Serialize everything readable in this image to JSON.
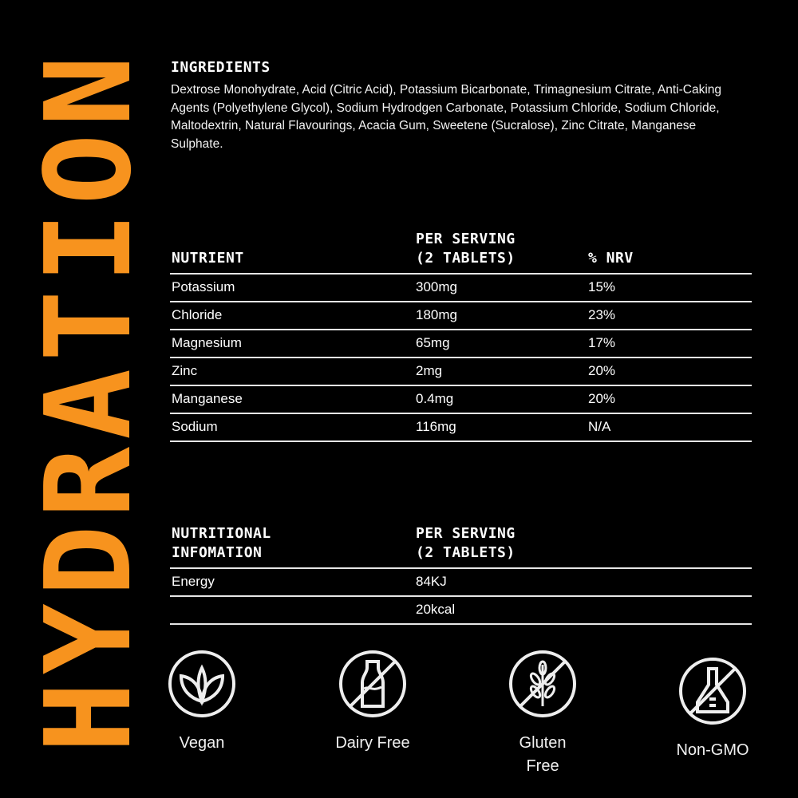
{
  "brand": "HYDRATION",
  "accent_color": "#f7931e",
  "ingredients": {
    "title": "INGREDIENTS",
    "text": "Dextrose Monohydrate, Acid (Citric Acid), Potassium Bicarbonate, Trimagnesium Citrate, Anti-Caking Agents (Polyethylene Glycol), Sodium Hydrodgen Carbonate, Potassium Chloride, Sodium Chloride, Maltodextrin, Natural Flavourings, Acacia Gum, Sweetene (Sucralose), Zinc Citrate, Manganese Sulphate."
  },
  "nutrient_table": {
    "headers": [
      "NUTRIENT",
      "PER SERVING",
      "(2 TABLETS)",
      "% NRV"
    ],
    "rows": [
      [
        "Potassium",
        "300mg",
        "15%"
      ],
      [
        "Chloride",
        "180mg",
        "23%"
      ],
      [
        "Magnesium",
        "65mg",
        "17%"
      ],
      [
        "Zinc",
        "2mg",
        "20%"
      ],
      [
        "Manganese",
        "0.4mg",
        "20%"
      ],
      [
        "Sodium",
        "116mg",
        "N/A"
      ]
    ]
  },
  "nutrition_table": {
    "headers": [
      "NUTRITIONAL",
      "INFOMATION",
      "PER SERVING",
      "(2 TABLETS)"
    ],
    "rows": [
      [
        "Energy",
        "84KJ"
      ],
      [
        "",
        "20kcal"
      ]
    ]
  },
  "badges": [
    {
      "label": "Vegan",
      "icon": "leaf-icon"
    },
    {
      "label": "Dairy Free",
      "icon": "no-milk-icon"
    },
    {
      "label": "Gluten",
      "label2": "Free",
      "icon": "no-wheat-icon"
    },
    {
      "label": "Non-GMO",
      "icon": "no-flask-icon"
    }
  ]
}
